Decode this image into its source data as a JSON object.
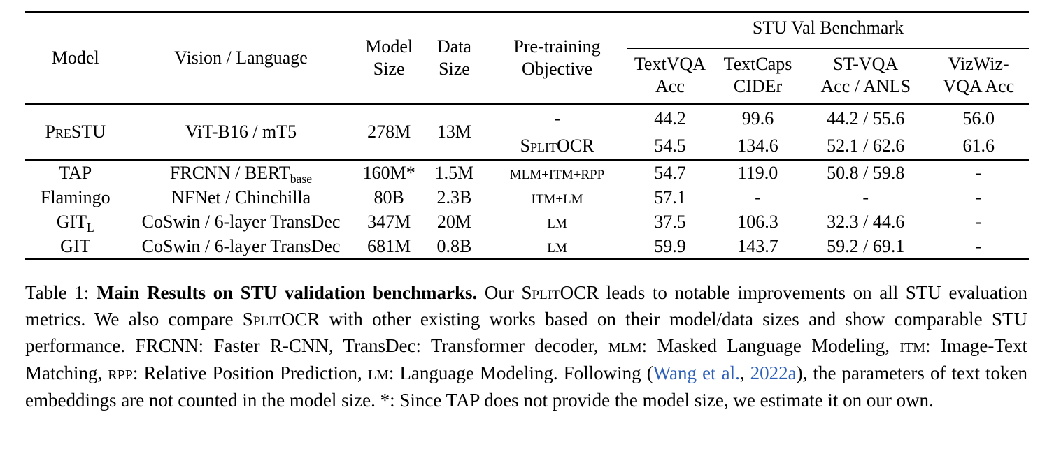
{
  "colors": {
    "citation_link": "#2b5fb8",
    "text": "#000000",
    "background": "#ffffff"
  },
  "table": {
    "header": {
      "model": "Model",
      "vision_language": "Vision / Language",
      "model_size_l1": "Model",
      "model_size_l2": "Size",
      "data_size_l1": "Data",
      "data_size_l2": "Size",
      "pretraining_l1": "Pre-training",
      "pretraining_l2": "Objective",
      "benchmark_group": "STU Val Benchmark",
      "metrics": [
        {
          "l1": "TextVQA",
          "l2": "Acc"
        },
        {
          "l1": "TextCaps",
          "l2": "CIDEr"
        },
        {
          "l1": "ST-VQA",
          "l2": "Acc / ANLS"
        },
        {
          "l1": "VizWiz-",
          "l2": "VQA Acc"
        }
      ]
    },
    "prestu_block": {
      "model": "PreSTU",
      "vision_language": "ViT-B16 / mT5",
      "model_size": "278M",
      "data_size": "13M",
      "rows": [
        {
          "objective": "-",
          "textvqa": "44.2",
          "textcaps": "99.6",
          "stvqa": "44.2 / 55.6",
          "vizwiz": "56.0"
        },
        {
          "objective": "SplitOCR",
          "textvqa": "54.5",
          "textcaps": "134.6",
          "stvqa": "52.1 / 62.6",
          "vizwiz": "61.6"
        }
      ]
    },
    "baseline_rows": [
      {
        "model": "TAP",
        "model_sub": "",
        "vision": "FRCNN / BERT",
        "vision_sub": "base",
        "model_size": "160M*",
        "data_size": "1.5M",
        "objective": "MLM+ITM+RPP",
        "textvqa": "54.7",
        "textcaps": "119.0",
        "stvqa": "50.8 / 59.8",
        "vizwiz": "-"
      },
      {
        "model": "Flamingo",
        "model_sub": "",
        "vision": "NFNet / Chinchilla",
        "vision_sub": "",
        "model_size": "80B",
        "data_size": "2.3B",
        "objective": "ITM+LM",
        "textvqa": "57.1",
        "textcaps": "-",
        "stvqa": "-",
        "vizwiz": "-"
      },
      {
        "model": "GIT",
        "model_sub": "L",
        "vision": "CoSwin / 6-layer TransDec",
        "vision_sub": "",
        "model_size": "347M",
        "data_size": "20M",
        "objective": "LM",
        "textvqa": "37.5",
        "textcaps": "106.3",
        "stvqa": "32.3 / 44.6",
        "vizwiz": "-"
      },
      {
        "model": "GIT",
        "model_sub": "",
        "vision": "CoSwin / 6-layer TransDec",
        "vision_sub": "",
        "model_size": "681M",
        "data_size": "0.8B",
        "objective": "LM",
        "textvqa": "59.9",
        "textcaps": "143.7",
        "stvqa": "59.2 / 69.1",
        "vizwiz": "-"
      }
    ]
  },
  "caption": {
    "segments": [
      {
        "text": "Table 1: "
      },
      {
        "text": "Main Results on STU validation benchmarks."
      },
      {
        "text": " Our "
      },
      {
        "text": "SplitOCR"
      },
      {
        "text": " leads to notable improvements on all STU evaluation metrics. We also compare "
      },
      {
        "text": "SplitOCR"
      },
      {
        "text": " with other existing works based on their model/data sizes and show comparable STU performance. FRCNN: Faster R-CNN, TransDec: Transformer decoder, "
      },
      {
        "text": "MLM"
      },
      {
        "text": ": Masked Language Modeling, "
      },
      {
        "text": "ITM"
      },
      {
        "text": ": Image-Text Matching, "
      },
      {
        "text": "RPP"
      },
      {
        "text": ": Relative Position Prediction, "
      },
      {
        "text": "LM"
      },
      {
        "text": ": Language Modeling. Following ("
      },
      {
        "text": "Wang et al."
      },
      {
        "text": ", "
      },
      {
        "text": "2022a"
      },
      {
        "text": "), the parameters of text token embeddings are not counted in the model size. *: Since TAP does not provide the model size, we estimate it on our own."
      }
    ]
  }
}
